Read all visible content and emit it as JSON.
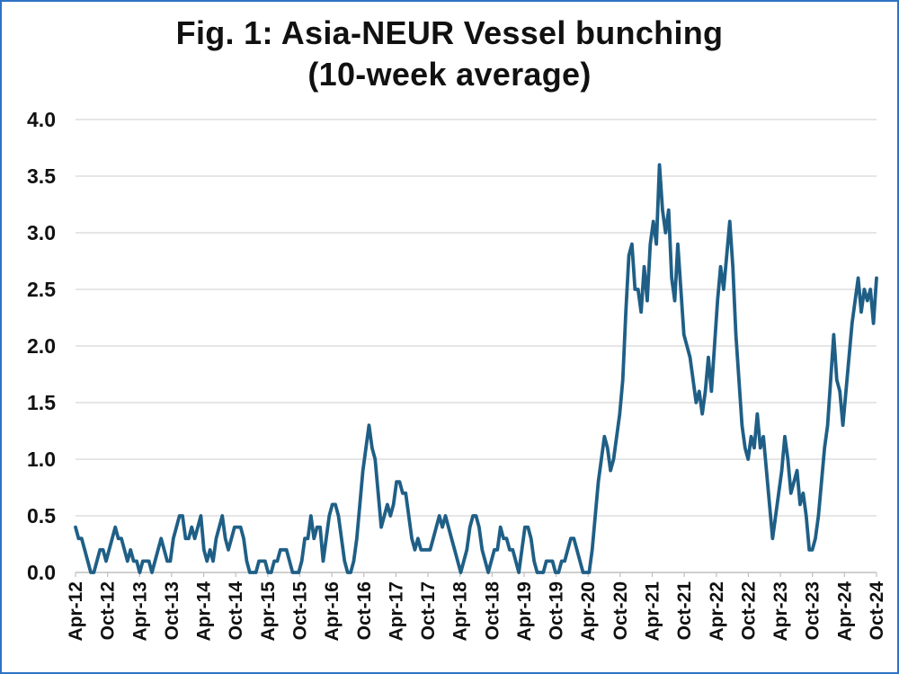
{
  "chart_data": {
    "type": "line",
    "title": "Fig. 1: Asia-NEUR Vessel bunching",
    "subtitle": "(10-week average)",
    "xlabel": "",
    "ylabel": "",
    "ylim": [
      0,
      4
    ],
    "y_ticks": [
      "0.0",
      "0.5",
      "1.0",
      "1.5",
      "2.0",
      "2.5",
      "3.0",
      "3.5",
      "4.0"
    ],
    "x_ticks": [
      "Apr-12",
      "Oct-12",
      "Apr-13",
      "Oct-13",
      "Apr-14",
      "Oct-14",
      "Apr-15",
      "Oct-15",
      "Apr-16",
      "Oct-16",
      "Apr-17",
      "Oct-17",
      "Apr-18",
      "Oct-18",
      "Apr-19",
      "Oct-19",
      "Apr-20",
      "Oct-20",
      "Apr-21",
      "Oct-21",
      "Apr-22",
      "Oct-22",
      "Apr-23",
      "Oct-23",
      "Apr-24",
      "Oct-24"
    ],
    "grid": true,
    "legend": "none",
    "line_color": "#1f5f86",
    "grid_color": "#d6d6d6",
    "series": [
      {
        "x_start": "Apr-12",
        "x_end": "Oct-24",
        "values": [
          0.4,
          0.3,
          0.3,
          0.2,
          0.1,
          0.0,
          0.0,
          0.1,
          0.2,
          0.2,
          0.1,
          0.2,
          0.3,
          0.4,
          0.3,
          0.3,
          0.2,
          0.1,
          0.2,
          0.1,
          0.1,
          0.0,
          0.1,
          0.1,
          0.1,
          0.0,
          0.1,
          0.2,
          0.3,
          0.2,
          0.1,
          0.1,
          0.3,
          0.4,
          0.5,
          0.5,
          0.3,
          0.3,
          0.4,
          0.3,
          0.4,
          0.5,
          0.2,
          0.1,
          0.2,
          0.1,
          0.3,
          0.4,
          0.5,
          0.3,
          0.2,
          0.3,
          0.4,
          0.4,
          0.4,
          0.3,
          0.1,
          0.0,
          0.0,
          0.0,
          0.1,
          0.1,
          0.1,
          0.0,
          0.0,
          0.1,
          0.1,
          0.2,
          0.2,
          0.2,
          0.1,
          0.0,
          0.0,
          0.0,
          0.1,
          0.3,
          0.3,
          0.5,
          0.3,
          0.4,
          0.4,
          0.1,
          0.3,
          0.5,
          0.6,
          0.6,
          0.5,
          0.3,
          0.1,
          0.0,
          0.0,
          0.1,
          0.3,
          0.6,
          0.9,
          1.1,
          1.3,
          1.1,
          1.0,
          0.7,
          0.4,
          0.5,
          0.6,
          0.5,
          0.6,
          0.8,
          0.8,
          0.7,
          0.7,
          0.5,
          0.3,
          0.2,
          0.3,
          0.2,
          0.2,
          0.2,
          0.2,
          0.3,
          0.4,
          0.5,
          0.4,
          0.5,
          0.4,
          0.3,
          0.2,
          0.1,
          0.0,
          0.1,
          0.2,
          0.4,
          0.5,
          0.5,
          0.4,
          0.2,
          0.1,
          0.0,
          0.1,
          0.2,
          0.2,
          0.4,
          0.3,
          0.3,
          0.2,
          0.2,
          0.1,
          0.0,
          0.2,
          0.4,
          0.4,
          0.3,
          0.1,
          0.0,
          0.0,
          0.0,
          0.1,
          0.1,
          0.1,
          0.0,
          0.0,
          0.1,
          0.1,
          0.2,
          0.3,
          0.3,
          0.2,
          0.1,
          0.0,
          0.0,
          0.0,
          0.2,
          0.5,
          0.8,
          1.0,
          1.2,
          1.1,
          0.9,
          1.0,
          1.2,
          1.4,
          1.7,
          2.3,
          2.8,
          2.9,
          2.5,
          2.5,
          2.3,
          2.7,
          2.4,
          2.9,
          3.1,
          2.9,
          3.6,
          3.2,
          3.0,
          3.2,
          2.6,
          2.4,
          2.9,
          2.5,
          2.1,
          2.0,
          1.9,
          1.7,
          1.5,
          1.6,
          1.4,
          1.6,
          1.9,
          1.6,
          2.0,
          2.4,
          2.7,
          2.5,
          2.8,
          3.1,
          2.7,
          2.1,
          1.7,
          1.3,
          1.1,
          1.0,
          1.2,
          1.1,
          1.4,
          1.1,
          1.2,
          0.9,
          0.6,
          0.3,
          0.5,
          0.7,
          0.9,
          1.2,
          1.0,
          0.7,
          0.8,
          0.9,
          0.6,
          0.7,
          0.5,
          0.2,
          0.2,
          0.3,
          0.5,
          0.8,
          1.1,
          1.3,
          1.7,
          2.1,
          1.7,
          1.6,
          1.3,
          1.6,
          1.9,
          2.2,
          2.4,
          2.6,
          2.3,
          2.5,
          2.4,
          2.5,
          2.2,
          2.6
        ]
      }
    ]
  }
}
